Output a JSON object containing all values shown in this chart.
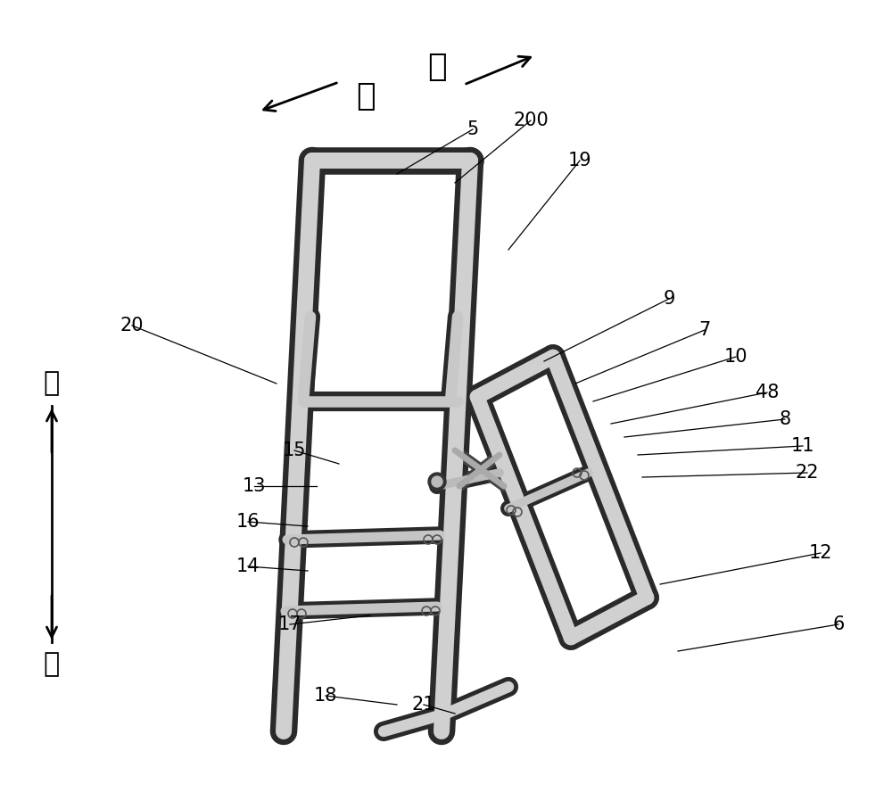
{
  "bg_color": "#ffffff",
  "dark": "#2a2a2a",
  "mid": "#888888",
  "light": "#d8d8d8",
  "figsize": [
    10.0,
    9.07
  ],
  "dpi": 100,
  "dir_chars": {
    "zuo": "左",
    "you": "右",
    "shang": "上",
    "xia": "下"
  },
  "labels": [
    "5",
    "200",
    "19",
    "9",
    "7",
    "10",
    "48",
    "8",
    "11",
    "22",
    "12",
    "6",
    "20",
    "15",
    "13",
    "16",
    "14",
    "17",
    "18",
    "21"
  ]
}
